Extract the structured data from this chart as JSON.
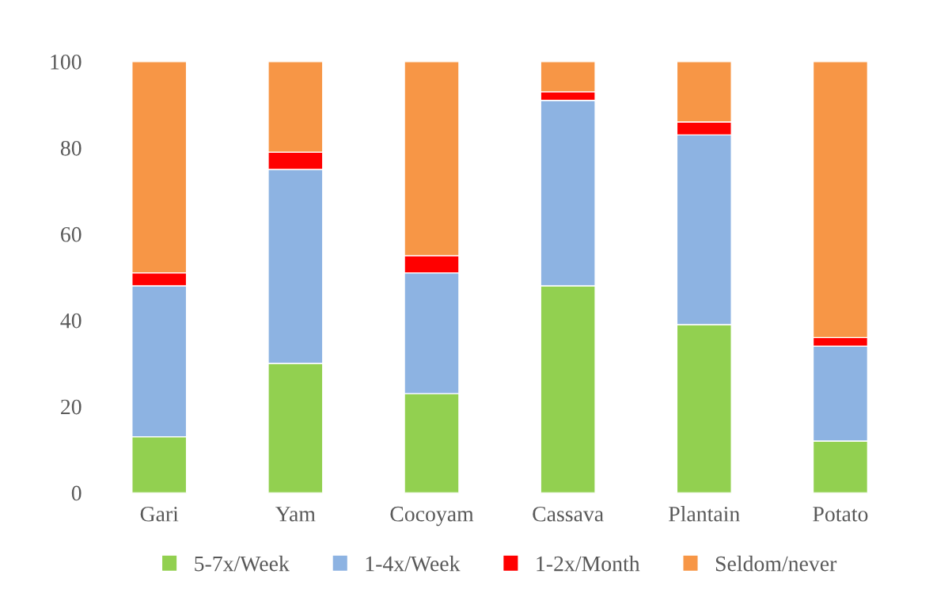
{
  "chart_data": {
    "type": "bar",
    "stacked": true,
    "categories": [
      "Gari",
      "Yam",
      "Cocoyam",
      "Cassava",
      "Plantain",
      "Potato"
    ],
    "series": [
      {
        "name": "5-7x/Week",
        "color": "#92d050",
        "values": [
          13,
          30,
          23,
          48,
          39,
          12
        ]
      },
      {
        "name": "1-4x/Week",
        "color": "#8db3e2",
        "values": [
          35,
          45,
          28,
          43,
          44,
          22
        ]
      },
      {
        "name": "1-2x/Month",
        "color": "#ff0000",
        "values": [
          3,
          4,
          4,
          2,
          3,
          2
        ]
      },
      {
        "name": "Seldom/never",
        "color": "#f79646",
        "values": [
          49,
          21,
          45,
          7,
          14,
          64
        ]
      }
    ],
    "ylim": [
      0,
      100
    ],
    "yticks": [
      0,
      20,
      40,
      60,
      80,
      100
    ],
    "grid": false,
    "legend": "bottom"
  }
}
